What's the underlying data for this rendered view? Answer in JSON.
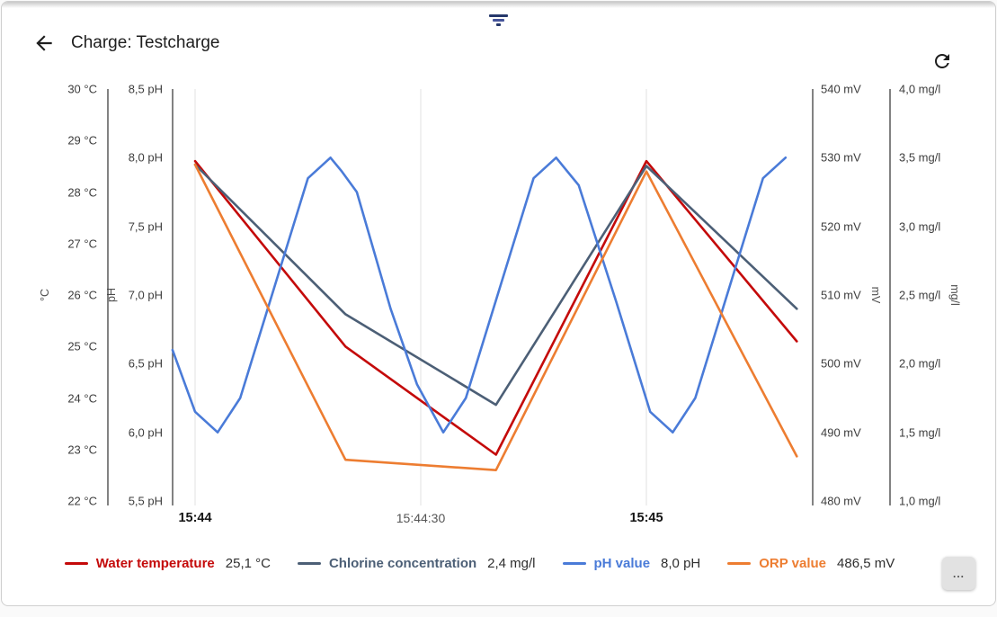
{
  "header": {
    "title": "Charge: Testcharge"
  },
  "chart_data": {
    "type": "line",
    "x_axis": {
      "tick_labels": [
        "15:44",
        "15:44:30",
        "15:45"
      ],
      "tick_times_s": [
        0,
        30,
        60
      ],
      "bold_ticks": [
        true,
        false,
        true
      ]
    },
    "y_axes": [
      {
        "id": "temp",
        "unit": "°C",
        "min": 22,
        "max": 30,
        "tick_labels": [
          "30 °C",
          "29 °C",
          "28 °C",
          "27 °C",
          "26 °C",
          "25 °C",
          "24 °C",
          "23 °C",
          "22 °C"
        ]
      },
      {
        "id": "ph",
        "unit": "pH",
        "min": 5.5,
        "max": 8.5,
        "tick_labels": [
          "8,5 pH",
          "8,0 pH",
          "7,5 pH",
          "7,0 pH",
          "6,5 pH",
          "6,0 pH",
          "5,5 pH"
        ]
      },
      {
        "id": "mv",
        "unit": "mV",
        "min": 480,
        "max": 540,
        "tick_labels": [
          "540 mV",
          "530 mV",
          "520 mV",
          "510 mV",
          "500 mV",
          "490 mV",
          "480 mV"
        ]
      },
      {
        "id": "mgl",
        "unit": "mg/l",
        "min": 1.0,
        "max": 4.0,
        "tick_labels": [
          "4,0 mg/l",
          "3,5 mg/l",
          "3,0 mg/l",
          "2,5 mg/l",
          "2,0 mg/l",
          "1,5 mg/l",
          "1,0 mg/l"
        ]
      }
    ],
    "series": [
      {
        "name": "Water temperature",
        "axis": "temp",
        "color": "#c40a0a",
        "points": [
          [
            0,
            28.6
          ],
          [
            20,
            25.0
          ],
          [
            40,
            22.9
          ],
          [
            60,
            28.6
          ],
          [
            80,
            25.1
          ]
        ]
      },
      {
        "name": "Chlorine concentration",
        "axis": "mgl",
        "color": "#4c5f76",
        "points": [
          [
            0,
            3.45
          ],
          [
            20,
            2.36
          ],
          [
            40,
            1.7
          ],
          [
            60,
            3.44
          ],
          [
            80,
            2.4
          ]
        ]
      },
      {
        "name": "pH value",
        "axis": "ph",
        "color": "#4a7bd8",
        "points": [
          [
            -3,
            6.6
          ],
          [
            0,
            6.15
          ],
          [
            3,
            6.0
          ],
          [
            6,
            6.25
          ],
          [
            15,
            7.85
          ],
          [
            18,
            8.0
          ],
          [
            19.5,
            7.9
          ],
          [
            21.5,
            7.75
          ],
          [
            26,
            6.9
          ],
          [
            29.5,
            6.35
          ],
          [
            33,
            6.0
          ],
          [
            36,
            6.25
          ],
          [
            45,
            7.85
          ],
          [
            48,
            8.0
          ],
          [
            51,
            7.8
          ],
          [
            56,
            6.95
          ],
          [
            60.5,
            6.15
          ],
          [
            63.5,
            6.0
          ],
          [
            66.5,
            6.25
          ],
          [
            75.5,
            7.85
          ],
          [
            78.5,
            8.0
          ]
        ]
      },
      {
        "name": "ORP value",
        "axis": "mv",
        "color": "#ed7d31",
        "points": [
          [
            0,
            529
          ],
          [
            20,
            486
          ],
          [
            40,
            484.5
          ],
          [
            60,
            528
          ],
          [
            80,
            486.5
          ]
        ]
      }
    ]
  },
  "legend": {
    "items": [
      {
        "label": "Water temperature",
        "value": "25,1 °C",
        "color": "#c40a0a"
      },
      {
        "label": "Chlorine concentration",
        "value": "2,4 mg/l",
        "color": "#4c5f76"
      },
      {
        "label": "pH value",
        "value": "8,0 pH",
        "color": "#4a7bd8"
      },
      {
        "label": "ORP value",
        "value": "486,5 mV",
        "color": "#ed7d31"
      }
    ],
    "more_button_label": "..."
  }
}
